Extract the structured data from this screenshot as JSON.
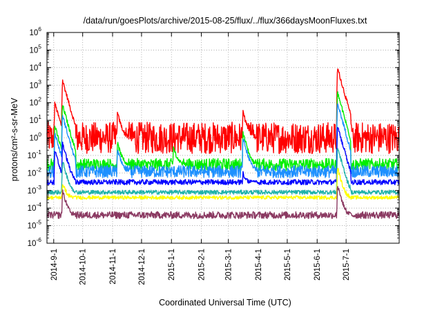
{
  "chart_data": {
    "type": "line",
    "title": "/data/run/goesPlots/archive/2015-08-25/flux/../flux/366daysMoonFluxes.txt",
    "xlabel": "Coordinated Universal Time (UTC)",
    "ylabel": "protons/cm²-s-sr-MeV",
    "y_scale": "log",
    "ylim": [
      1e-06,
      1000000.0
    ],
    "y_ticks": [
      {
        "exp": -6,
        "label": "10",
        "sup": "-6"
      },
      {
        "exp": -5,
        "label": "10",
        "sup": "-5"
      },
      {
        "exp": -4,
        "label": "10",
        "sup": "-4"
      },
      {
        "exp": -3,
        "label": "10",
        "sup": "-3"
      },
      {
        "exp": -2,
        "label": "10",
        "sup": "-2"
      },
      {
        "exp": -1,
        "label": "10",
        "sup": "-1"
      },
      {
        "exp": 0,
        "label": "10",
        "sup": "0"
      },
      {
        "exp": 1,
        "label": "10",
        "sup": "1"
      },
      {
        "exp": 2,
        "label": "10",
        "sup": "2"
      },
      {
        "exp": 3,
        "label": "10",
        "sup": "3"
      },
      {
        "exp": 4,
        "label": "10",
        "sup": "4"
      },
      {
        "exp": 5,
        "label": "10",
        "sup": "5"
      },
      {
        "exp": 6,
        "label": "10",
        "sup": "6"
      }
    ],
    "xlim": [
      "2014-08-25",
      "2015-08-25"
    ],
    "x_ticks": [
      "2014-9-1",
      "2014-10-1",
      "2014-11-1",
      "2014-12-1",
      "2015-1-1",
      "2015-2-1",
      "2015-3-1",
      "2015-4-1",
      "2015-5-1",
      "2015-6-1",
      "2015-7-1"
    ],
    "x_tick_dates": [
      "2014-09-01",
      "2014-10-01",
      "2014-11-01",
      "2014-12-01",
      "2015-01-01",
      "2015-02-01",
      "2015-03-01",
      "2015-04-01",
      "2015-05-01",
      "2015-06-01",
      "2015-07-01"
    ],
    "grid": true,
    "legend": "none",
    "series": [
      {
        "color": "#ff0000",
        "baseline": 1.0,
        "noise_decades": 0.9,
        "events": [
          [
            "2014-09-10",
            2000
          ],
          [
            "2014-09-02",
            100
          ],
          [
            "2015-06-22",
            10000
          ],
          [
            "2015-06-24",
            500
          ],
          [
            "2015-03-16",
            30
          ],
          [
            "2014-11-06",
            25
          ]
        ]
      },
      {
        "color": "#00ee00",
        "baseline": 0.03,
        "noise_decades": 0.35,
        "events": [
          [
            "2014-09-10",
            80
          ],
          [
            "2014-09-02",
            5
          ],
          [
            "2015-06-22",
            400
          ],
          [
            "2015-03-16",
            2
          ],
          [
            "2014-11-06",
            0.5
          ],
          [
            "2015-01-03",
            0.3
          ]
        ]
      },
      {
        "color": "#1e90ff",
        "baseline": 0.012,
        "noise_decades": 0.35,
        "events": [
          [
            "2014-09-10",
            20
          ],
          [
            "2014-09-02",
            2
          ],
          [
            "2015-06-22",
            100
          ],
          [
            "2015-03-16",
            1
          ],
          [
            "2014-11-06",
            0.2
          ]
        ]
      },
      {
        "color": "#0000ff",
        "baseline": 0.003,
        "noise_decades": 0.15,
        "events": [
          [
            "2014-09-10",
            0.5
          ],
          [
            "2014-09-02",
            0.2
          ],
          [
            "2015-06-22",
            5
          ],
          [
            "2015-03-16",
            0.01
          ]
        ]
      },
      {
        "color": "#20b2aa",
        "baseline": 0.0008,
        "noise_decades": 0.12,
        "events": [
          [
            "2014-09-10",
            0.05
          ],
          [
            "2015-06-22",
            0.3
          ]
        ]
      },
      {
        "color": "#ffff00",
        "baseline": 0.0004,
        "noise_decades": 0.1,
        "events": [
          [
            "2014-09-10",
            0.003
          ],
          [
            "2015-06-22",
            0.02
          ]
        ]
      },
      {
        "color": "#8b3a62",
        "baseline": 4e-05,
        "noise_decades": 0.2,
        "events": [
          [
            "2014-09-10",
            0.001
          ],
          [
            "2015-06-22",
            0.002
          ]
        ]
      }
    ]
  }
}
